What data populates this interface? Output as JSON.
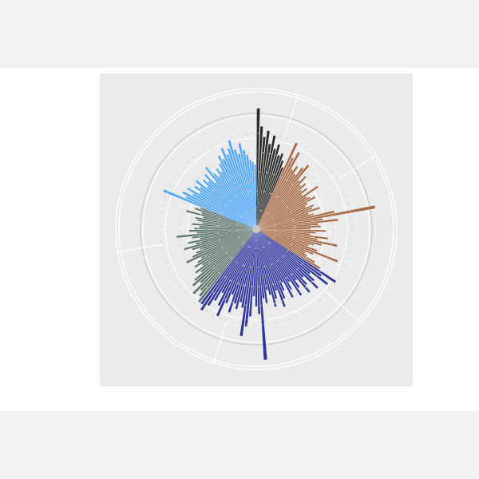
{
  "page": {
    "background": "#f2f2f2",
    "canvas_background": "#ffffff",
    "panel_background": "#ebebeb"
  },
  "chart_data": {
    "type": "bar",
    "subtype": "circular-barplot",
    "title": "",
    "xlabel": "",
    "ylabel": "",
    "ylim": [
      0,
      100
    ],
    "grid": true,
    "legend": "none",
    "groups": [
      {
        "color": "#2b2b2b",
        "values": [
          92,
          78,
          70,
          75,
          65,
          72,
          62,
          66,
          58,
          60,
          55,
          50
        ]
      },
      {
        "color": "#a86a44",
        "values": [
          72,
          60,
          66,
          52,
          56,
          50,
          58,
          62,
          48,
          54,
          46,
          50,
          44,
          48,
          42,
          56,
          44,
          46,
          50,
          42,
          40,
          46,
          44,
          50,
          40,
          44,
          60,
          92,
          50,
          62,
          46,
          48,
          40,
          52,
          44,
          40,
          54,
          46,
          62,
          50,
          44,
          40,
          48,
          66,
          46,
          40,
          42,
          50,
          56
        ]
      },
      {
        "color": "#2e35a0",
        "values": [
          72,
          60,
          68,
          52,
          58,
          64,
          50,
          56,
          62,
          48,
          54,
          60,
          46,
          52,
          58,
          44,
          50,
          56,
          62,
          48,
          54,
          60,
          50,
          46,
          56,
          52,
          100,
          64,
          58,
          50,
          66,
          74,
          82,
          60,
          56,
          62,
          58,
          66,
          52,
          60,
          72,
          64,
          54,
          62,
          68,
          74,
          70
        ]
      },
      {
        "color": "#5c756e",
        "values": [
          70,
          66,
          62,
          68,
          58,
          64,
          60,
          52,
          56,
          48,
          54,
          50,
          46,
          58,
          52,
          48,
          44,
          50,
          56,
          46,
          52,
          42,
          48,
          60,
          44,
          50,
          46,
          42,
          48,
          40,
          44,
          46,
          40,
          54,
          42,
          48,
          44
        ]
      },
      {
        "color": "#4da6ff",
        "values": [
          76,
          58,
          62,
          54,
          60,
          50,
          56,
          52,
          58,
          48,
          54,
          50,
          56,
          46,
          60,
          52,
          48,
          54,
          50,
          56,
          62,
          58,
          66,
          60,
          64,
          70,
          62,
          58,
          66,
          60,
          56,
          52,
          50,
          48
        ]
      }
    ]
  }
}
